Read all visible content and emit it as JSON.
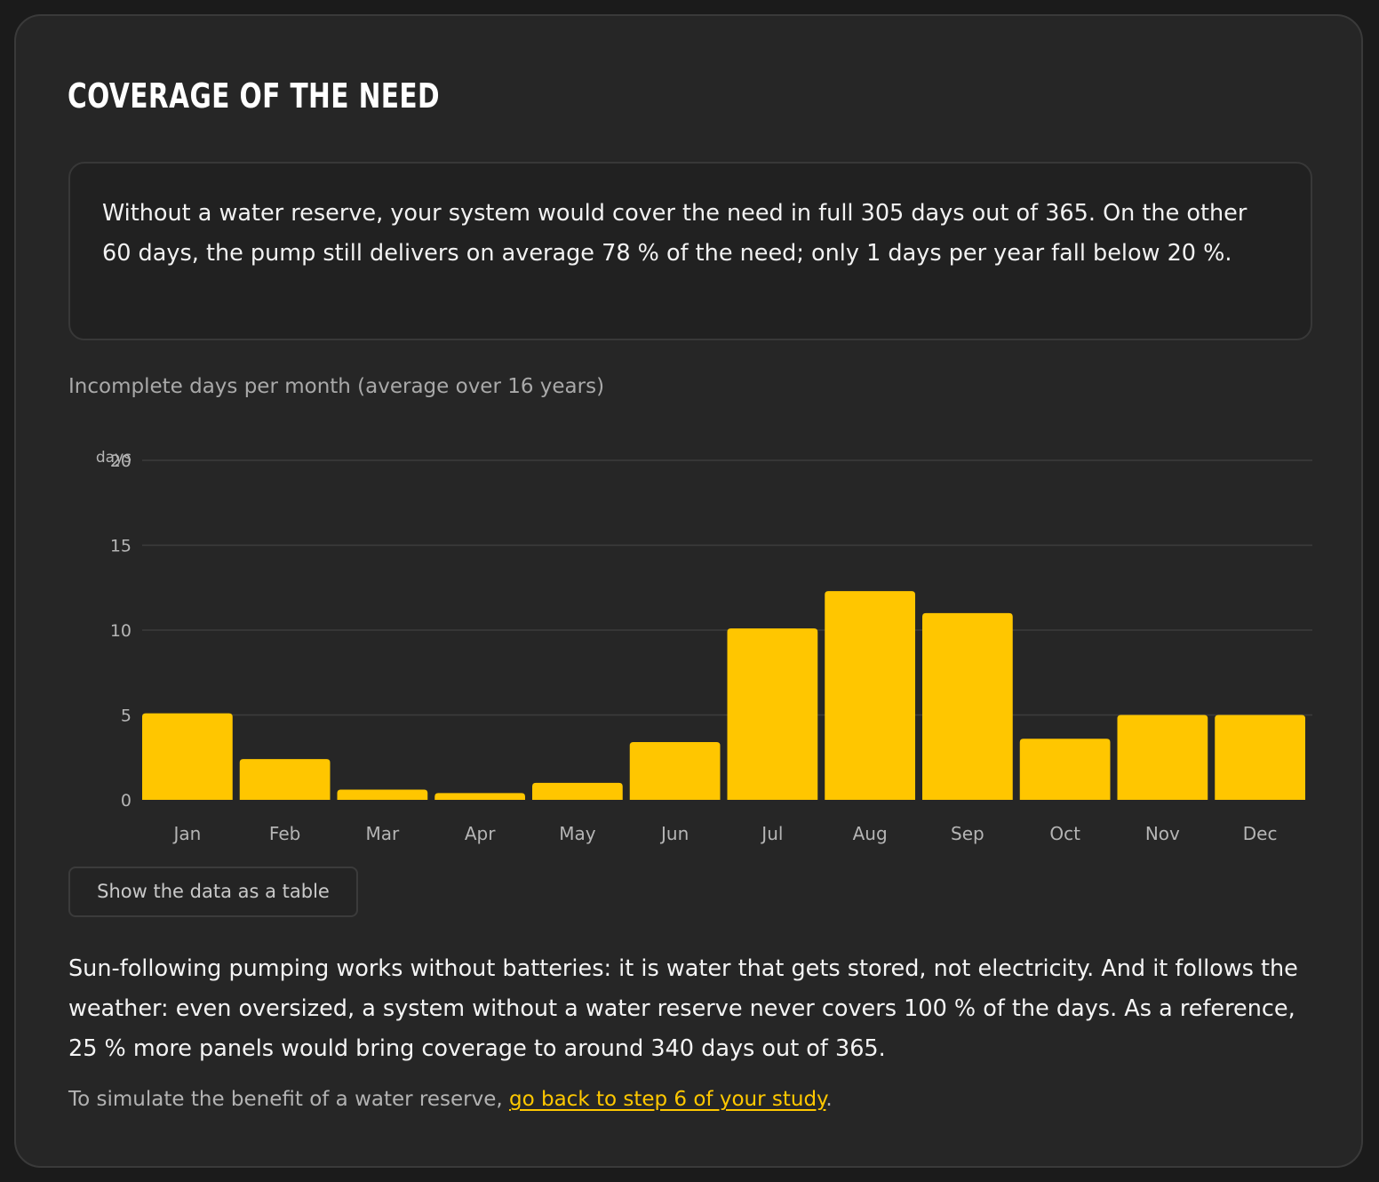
{
  "card": {
    "title": "Coverage of the need",
    "summary": "Without a water reserve, your system would cover the need in full 305 days out of 365. On the other 60 days, the pump still delivers on average 78 % of the need; only 1 days per year fall below 20 %."
  },
  "chart": {
    "caption": "Incomplete days per month (average over 16 years)",
    "show_table_button": "Show the data as a table"
  },
  "chart_data": {
    "type": "bar",
    "ylabel": "days",
    "ylim": [
      0,
      20
    ],
    "yticks": [
      0,
      5,
      10,
      15,
      20
    ],
    "grid": true,
    "bar_color": "#ffc600",
    "categories": [
      "Jan",
      "Feb",
      "Mar",
      "Apr",
      "May",
      "Jun",
      "Jul",
      "Aug",
      "Sep",
      "Oct",
      "Nov",
      "Dec"
    ],
    "values": [
      5.1,
      2.4,
      0.6,
      0.4,
      1.0,
      3.4,
      10.1,
      12.3,
      11.0,
      3.6,
      5.0,
      5.0
    ]
  },
  "body": {
    "paragraph": "Sun-following pumping works without batteries: it is water that gets stored, not electricity. And it follows the weather: even oversized, a system without a water reserve never covers 100 % of the days. As a reference, 25 % more panels would bring coverage to around 340 days out of 365."
  },
  "footer": {
    "prefix": "To simulate the benefit of a water reserve, ",
    "link": "go back to step 6 of your study",
    "suffix": "."
  },
  "theme": {
    "accent": "#ffc600",
    "card_background": "#262626",
    "page_background": "#1b1b1b"
  }
}
